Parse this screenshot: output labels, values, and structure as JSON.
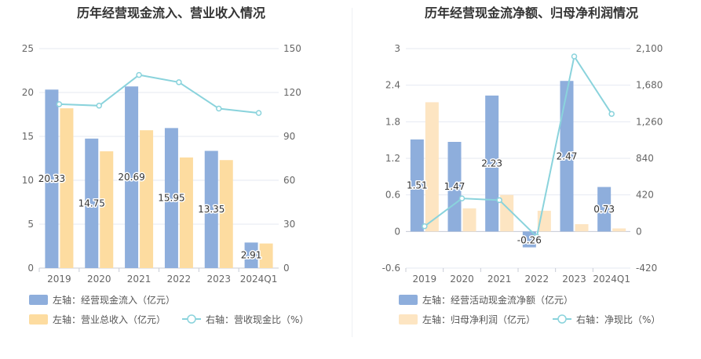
{
  "charts": [
    {
      "title": "历年经营现金流入、营业收入情况",
      "legend": [
        {
          "label": "左轴：经营现金流入（亿元）",
          "color": "#8eaedc",
          "kind": "bar"
        },
        {
          "label": "左轴：营业总收入（亿元）",
          "color": "#fddca0",
          "kind": "bar"
        },
        {
          "label": "右轴：营收现金比（%）",
          "color": "#8ad3dc",
          "kind": "line"
        }
      ]
    },
    {
      "title": "历年经营现金流净额、归母净利润情况",
      "legend": [
        {
          "label": "左轴：经营活动现金流净额（亿元）",
          "color": "#8eaedc",
          "kind": "bar"
        },
        {
          "label": "左轴：归母净利润（亿元）",
          "color": "#fde5c2",
          "kind": "bar"
        },
        {
          "label": "右轴：净现比（%）",
          "color": "#8ad3dc",
          "kind": "line"
        }
      ]
    }
  ],
  "chart_data": [
    {
      "type": "bar",
      "title": "历年经营现金流入、营业收入情况",
      "categories": [
        "2019",
        "2020",
        "2021",
        "2022",
        "2023",
        "2024Q1"
      ],
      "left_axis": {
        "min": 0,
        "max": 25,
        "ticks": [
          "0",
          "5",
          "10",
          "15",
          "20",
          "25"
        ]
      },
      "right_axis": {
        "min": 0,
        "max": 150,
        "ticks": [
          "0",
          "30",
          "60",
          "90",
          "120",
          "150"
        ]
      },
      "series": [
        {
          "name": "经营现金流入",
          "axis": "left",
          "type": "bar",
          "color": "#8eaedc",
          "values": [
            20.33,
            14.75,
            20.69,
            15.95,
            13.35,
            2.91
          ],
          "labels": [
            "20.33",
            "14.75",
            "20.69",
            "15.95",
            "13.35",
            "2.91"
          ]
        },
        {
          "name": "营业总收入",
          "axis": "left",
          "type": "bar",
          "color": "#fddca0",
          "values": [
            18.2,
            13.3,
            15.7,
            12.6,
            12.3,
            2.8
          ]
        },
        {
          "name": "营收现金比",
          "axis": "right",
          "type": "line",
          "color": "#8ad3dc",
          "values": [
            112,
            111,
            132,
            127,
            109,
            106
          ]
        }
      ],
      "grid": true,
      "legend_position": "bottom"
    },
    {
      "type": "bar",
      "title": "历年经营现金流净额、归母净利润情况",
      "categories": [
        "2019",
        "2020",
        "2021",
        "2022",
        "2023",
        "2024Q1"
      ],
      "left_axis": {
        "min": -0.6,
        "max": 3,
        "ticks": [
          "-0.6",
          "0",
          "0.6",
          "1.2",
          "1.8",
          "2.4",
          "3"
        ]
      },
      "right_axis": {
        "min": -420,
        "max": 2100,
        "ticks": [
          "-420",
          "0",
          "420",
          "840",
          "1,260",
          "1,680",
          "2,100"
        ]
      },
      "series": [
        {
          "name": "经营活动现金流净额",
          "axis": "left",
          "type": "bar",
          "color": "#8eaedc",
          "values": [
            1.51,
            1.47,
            2.23,
            -0.26,
            2.47,
            0.73
          ],
          "labels": [
            "1.51",
            "1.47",
            "2.23",
            "-0.26",
            "2.47",
            "0.73"
          ]
        },
        {
          "name": "归母净利润",
          "axis": "left",
          "type": "bar",
          "color": "#fde5c2",
          "values": [
            2.12,
            0.38,
            0.6,
            0.34,
            0.12,
            0.05
          ]
        },
        {
          "name": "净现比",
          "axis": "right",
          "type": "line",
          "color": "#8ad3dc",
          "values": [
            60,
            380,
            360,
            -60,
            2010,
            1350
          ]
        }
      ],
      "grid": true,
      "legend_position": "bottom"
    }
  ]
}
